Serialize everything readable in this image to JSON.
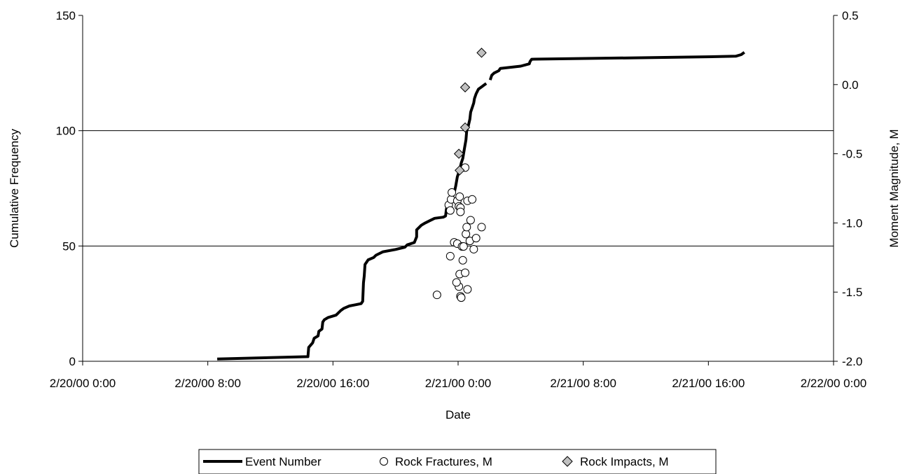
{
  "chart_data": {
    "type": "line",
    "xlabel": "Date",
    "ylabel_left": "Cumulative Frequency",
    "ylabel_right": "Moment Magnitude, M",
    "xlim_hours": [
      0,
      48
    ],
    "x_ticks": [
      {
        "hours": 0,
        "label": "2/20/00 0:00"
      },
      {
        "hours": 8,
        "label": "2/20/00 8:00"
      },
      {
        "hours": 16,
        "label": "2/20/00 16:00"
      },
      {
        "hours": 24,
        "label": "2/21/00 0:00"
      },
      {
        "hours": 32,
        "label": "2/21/00 8:00"
      },
      {
        "hours": 40,
        "label": "2/21/00 16:00"
      },
      {
        "hours": 48,
        "label": "2/22/00 0:00"
      }
    ],
    "ylim_left": [
      0,
      150
    ],
    "y_ticks_left": [
      "0",
      "50",
      "100",
      "150"
    ],
    "ylim_right": [
      -2.0,
      0.5
    ],
    "y_ticks_right": [
      "-2.0",
      "-1.5",
      "-1.0",
      "-0.5",
      "0.0",
      "0.5"
    ],
    "gridlines_left": [
      50,
      100
    ],
    "legend_position": "bottom",
    "legend": [
      "Event Number",
      "Rock Fractures, M",
      "Rock Impacts, M"
    ],
    "series": [
      {
        "name": "Event Number",
        "axis": "left",
        "style": "line",
        "color": "#000000",
        "segments": [
          [
            [
              8.6,
              1
            ],
            [
              14.4,
              2
            ],
            [
              14.45,
              6
            ],
            [
              14.7,
              8
            ],
            [
              14.8,
              10
            ],
            [
              15.05,
              11
            ],
            [
              15.1,
              13
            ],
            [
              15.3,
              14
            ],
            [
              15.35,
              17
            ],
            [
              15.45,
              18
            ],
            [
              15.7,
              19
            ],
            [
              16.2,
              20
            ],
            [
              16.5,
              22
            ],
            [
              16.7,
              23
            ],
            [
              17.05,
              24
            ],
            [
              17.8,
              25
            ],
            [
              17.9,
              26
            ],
            [
              17.95,
              34
            ],
            [
              18.0,
              37
            ],
            [
              18.05,
              42
            ],
            [
              18.25,
              44
            ],
            [
              18.6,
              45
            ],
            [
              18.75,
              46
            ],
            [
              19.2,
              47.5
            ],
            [
              20.0,
              48.5
            ],
            [
              20.6,
              49.5
            ],
            [
              20.75,
              50.5
            ],
            [
              21.2,
              51.5
            ],
            [
              21.35,
              54
            ],
            [
              21.35,
              57
            ],
            [
              21.65,
              59
            ],
            [
              21.9,
              60
            ],
            [
              22.2,
              61
            ],
            [
              22.5,
              62
            ],
            [
              23.05,
              62.5
            ],
            [
              23.2,
              63
            ],
            [
              23.25,
              66
            ],
            [
              23.35,
              68
            ],
            [
              23.55,
              70
            ],
            [
              23.75,
              73
            ],
            [
              23.85,
              76
            ],
            [
              23.95,
              80
            ],
            [
              24.1,
              83
            ],
            [
              24.2,
              86
            ],
            [
              24.3,
              88
            ],
            [
              24.4,
              92
            ],
            [
              24.5,
              96
            ],
            [
              24.55,
              100
            ],
            [
              24.65,
              102
            ],
            [
              24.75,
              105
            ],
            [
              24.8,
              108
            ],
            [
              24.9,
              110
            ],
            [
              25.0,
              112
            ],
            [
              25.05,
              114
            ],
            [
              25.15,
              116
            ],
            [
              25.3,
              118
            ],
            [
              25.5,
              119
            ],
            [
              25.7,
              120
            ],
            [
              25.8,
              120.5
            ]
          ],
          [
            [
              26.05,
              122
            ],
            [
              26.15,
              124
            ],
            [
              26.3,
              125
            ],
            [
              26.6,
              126
            ],
            [
              26.7,
              127
            ],
            [
              28.0,
              128
            ],
            [
              28.55,
              129
            ],
            [
              28.6,
              130
            ],
            [
              28.7,
              131
            ],
            [
              39.5,
              132
            ],
            [
              41.75,
              132.3
            ],
            [
              42.1,
              133
            ],
            [
              42.3,
              134
            ]
          ]
        ]
      },
      {
        "name": "Rock Fractures, M",
        "axis": "right",
        "style": "markers",
        "marker": "open-circle",
        "points": [
          [
            22.65,
            -1.52
          ],
          [
            23.4,
            -0.87
          ],
          [
            23.5,
            -0.91
          ],
          [
            23.55,
            -0.83
          ],
          [
            23.6,
            -0.78
          ],
          [
            23.5,
            -1.24
          ],
          [
            23.75,
            -1.14
          ],
          [
            23.95,
            -1.15
          ],
          [
            23.95,
            -0.84
          ],
          [
            24.05,
            -0.88
          ],
          [
            24.1,
            -0.81
          ],
          [
            24.15,
            -0.89
          ],
          [
            24.15,
            -0.92
          ],
          [
            24.05,
            -1.46
          ],
          [
            24.1,
            -1.37
          ],
          [
            23.9,
            -1.43
          ],
          [
            24.15,
            -1.53
          ],
          [
            24.2,
            -1.54
          ],
          [
            24.25,
            -1.17
          ],
          [
            24.3,
            -1.27
          ],
          [
            24.35,
            -1.17
          ],
          [
            24.45,
            -1.36
          ],
          [
            24.45,
            -0.6
          ],
          [
            24.5,
            -1.08
          ],
          [
            24.55,
            -1.03
          ],
          [
            24.6,
            -1.48
          ],
          [
            24.6,
            -0.84
          ],
          [
            24.75,
            -1.13
          ],
          [
            24.8,
            -0.98
          ],
          [
            24.9,
            -0.83
          ],
          [
            25.0,
            -1.19
          ],
          [
            25.15,
            -1.11
          ],
          [
            25.5,
            -1.03
          ]
        ]
      },
      {
        "name": "Rock Impacts, M",
        "axis": "right",
        "style": "markers",
        "marker": "gray-diamond",
        "points": [
          [
            25.5,
            0.23
          ],
          [
            24.45,
            -0.02
          ],
          [
            24.45,
            -0.31
          ],
          [
            24.05,
            -0.5
          ],
          [
            24.1,
            -0.62
          ]
        ]
      }
    ]
  }
}
